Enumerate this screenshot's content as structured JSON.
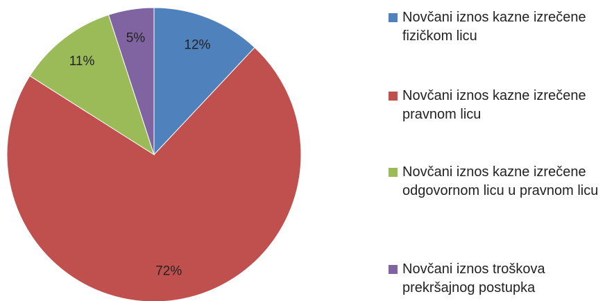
{
  "chart_data": {
    "type": "pie",
    "categories": [
      "Novčani iznos kazne izrečene fizičkom licu",
      "Novčani iznos kazne izrečene pravnom licu",
      "Novčani iznos kazne izrečene odgovornom licu u pravnom licu",
      "Novčani iznos troškova prekršajnog postupka"
    ],
    "values": [
      12,
      72,
      11,
      5
    ],
    "value_labels": [
      "12%",
      "72%",
      "11%",
      "5%"
    ],
    "colors": [
      "#4f81bd",
      "#c0504d",
      "#9bbb59",
      "#8064a2"
    ],
    "legend": "right"
  }
}
